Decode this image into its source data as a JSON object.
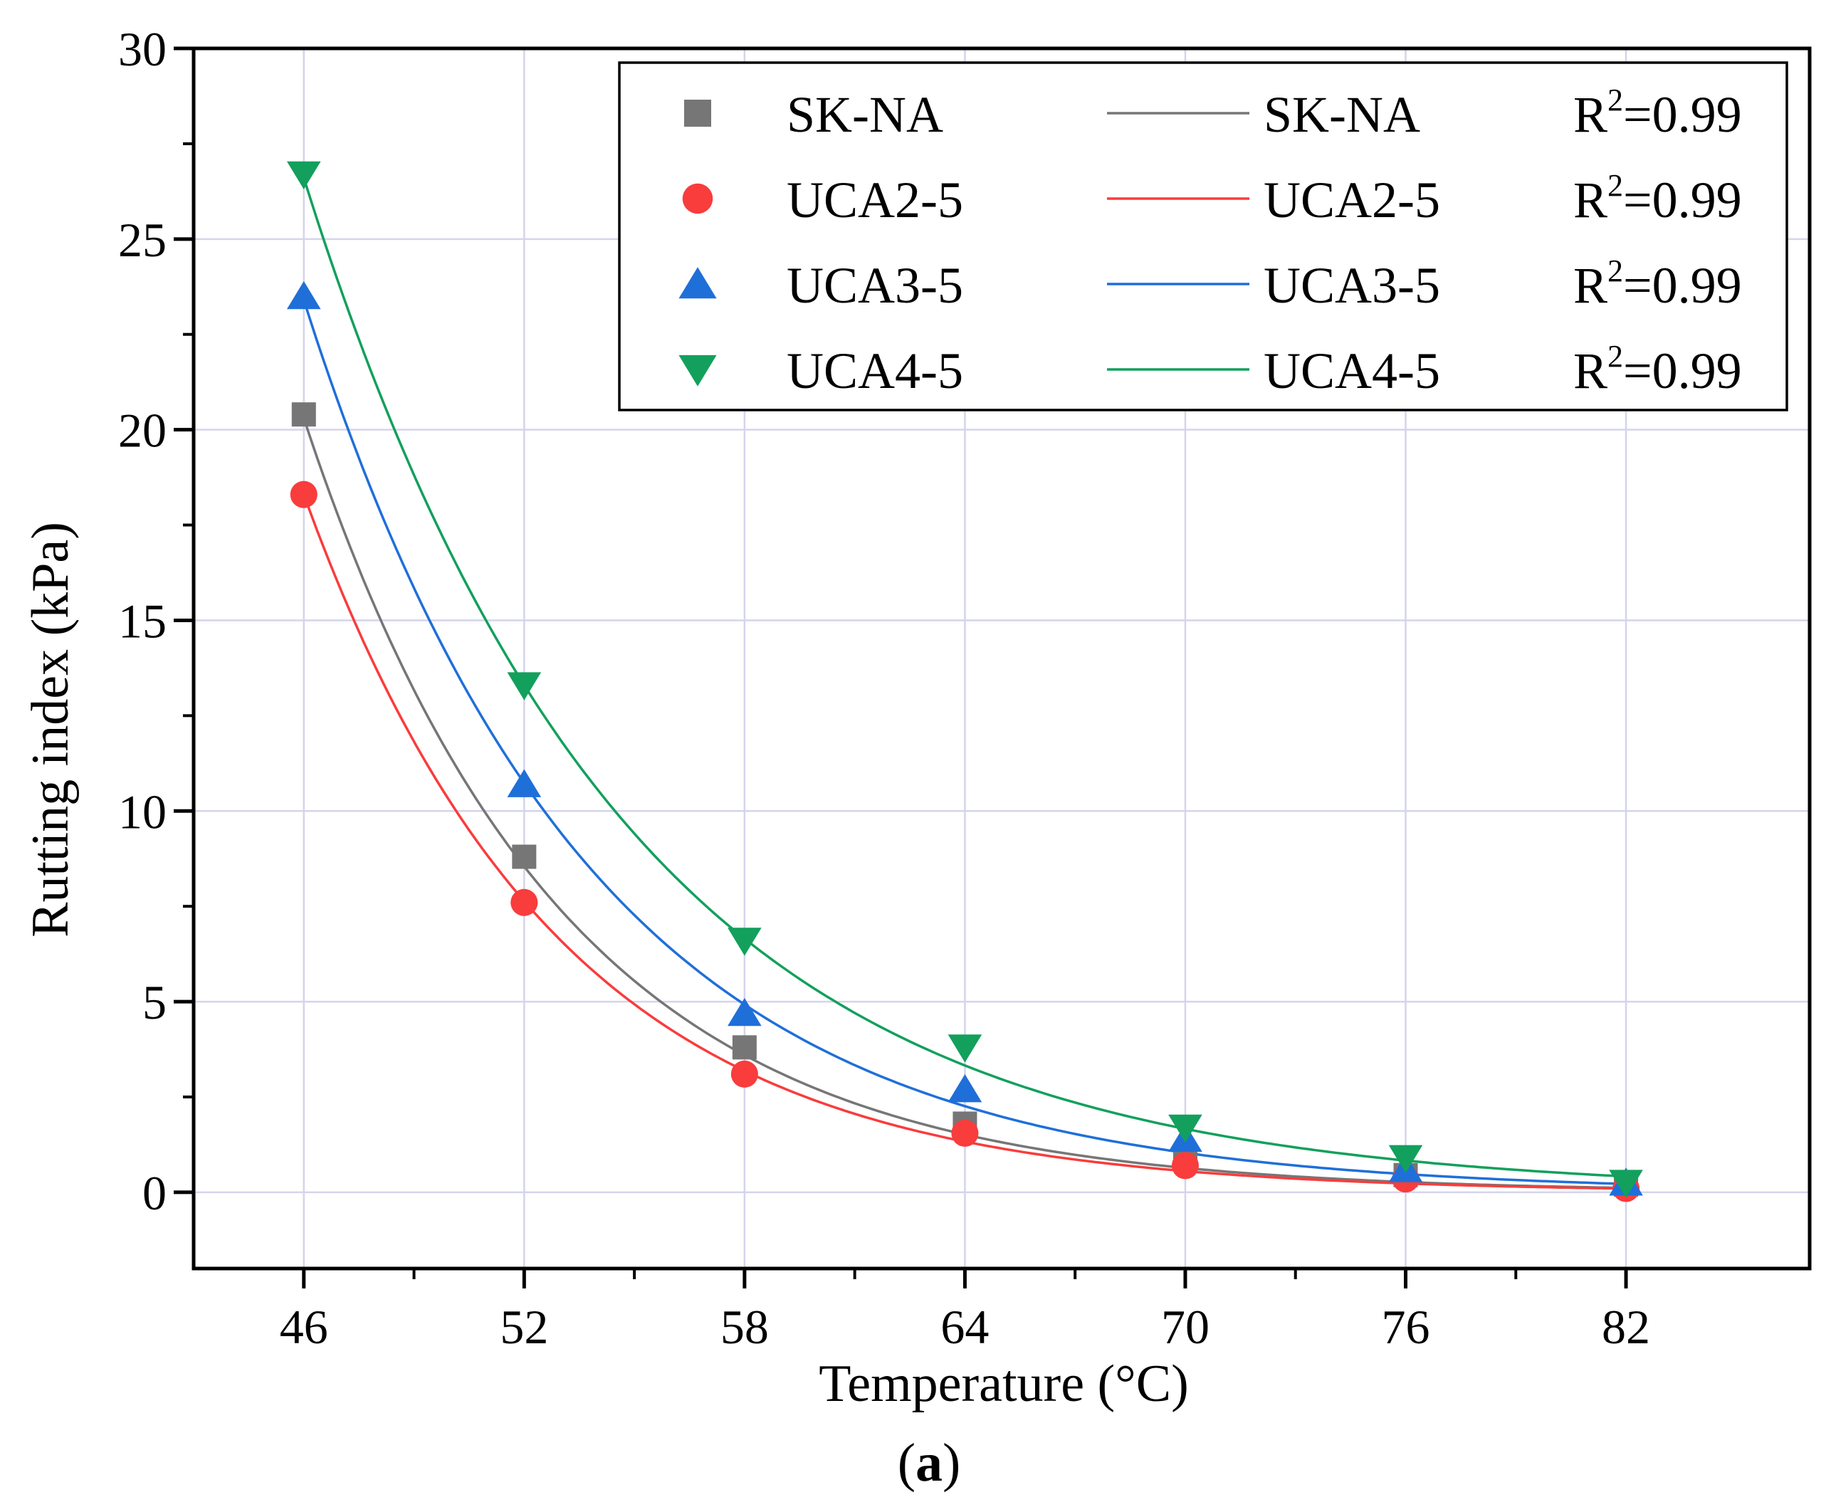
{
  "chart_data": {
    "type": "scatter",
    "title": "",
    "xlabel": "Temperature (°C)",
    "ylabel": "Rutting index (kPa)",
    "caption_open": "(",
    "caption_letter": "a",
    "caption_close": ")",
    "xlim": [
      43,
      87
    ],
    "ylim": [
      -2,
      30
    ],
    "xticks": [
      46,
      52,
      58,
      64,
      70,
      76,
      82
    ],
    "yticks": [
      0,
      5,
      10,
      15,
      20,
      25,
      30
    ],
    "grid": true,
    "legend_position": "top-right",
    "x": [
      46,
      52,
      58,
      64,
      70,
      76,
      82
    ],
    "series": [
      {
        "name": "SK-NA",
        "fit_name": "SK-NA",
        "marker": "square",
        "color": "#767676",
        "values": [
          20.4,
          8.8,
          3.8,
          1.8,
          0.9,
          0.45,
          0.2
        ],
        "fit": {
          "a": 20.3,
          "k": 0.1442
        },
        "r2_base": "R",
        "r2_exp": "2",
        "r2_value": "=0.99"
      },
      {
        "name": "UCA2-5",
        "fit_name": "UCA2-5",
        "marker": "circle",
        "color": "#f93c3c",
        "values": [
          18.3,
          7.6,
          3.1,
          1.55,
          0.7,
          0.35,
          0.1
        ],
        "fit": {
          "a": 18.3,
          "k": 0.1457
        },
        "r2_base": "R",
        "r2_exp": "2",
        "r2_value": "=0.99"
      },
      {
        "name": "UCA3-5",
        "fit_name": "UCA3-5",
        "marker": "triangle-up",
        "color": "#1f6fd9",
        "values": [
          23.5,
          10.7,
          4.7,
          2.7,
          1.4,
          0.6,
          0.25
        ],
        "fit": {
          "a": 23.4,
          "k": 0.1299
        },
        "r2_base": "R",
        "r2_exp": "2",
        "r2_value": "=0.99"
      },
      {
        "name": "UCA4-5",
        "fit_name": "UCA4-5",
        "marker": "triangle-down",
        "color": "#12a05c",
        "values": [
          26.7,
          13.3,
          6.6,
          3.8,
          1.7,
          0.9,
          0.25
        ],
        "fit": {
          "a": 26.6,
          "k": 0.1155
        },
        "r2_base": "R",
        "r2_exp": "2",
        "r2_value": "=0.99"
      }
    ]
  }
}
